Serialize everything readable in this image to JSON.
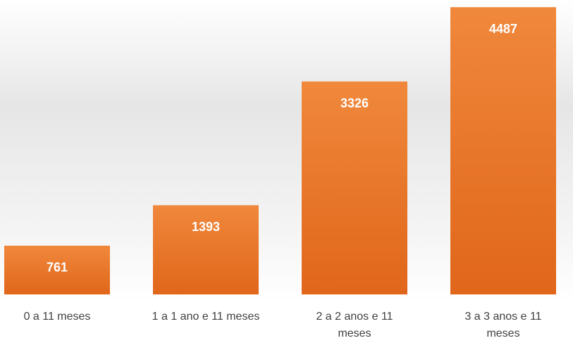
{
  "chart_data": {
    "type": "bar",
    "categories": [
      "0 a 11 meses",
      "1 a 1 ano e 11 meses",
      "2 a 2 anos e 11 meses",
      "3 a 3 anos e 11 meses"
    ],
    "values": [
      761,
      1393,
      3326,
      4487
    ],
    "color": "#eb7a2e",
    "ylim": [
      0,
      4500
    ]
  }
}
